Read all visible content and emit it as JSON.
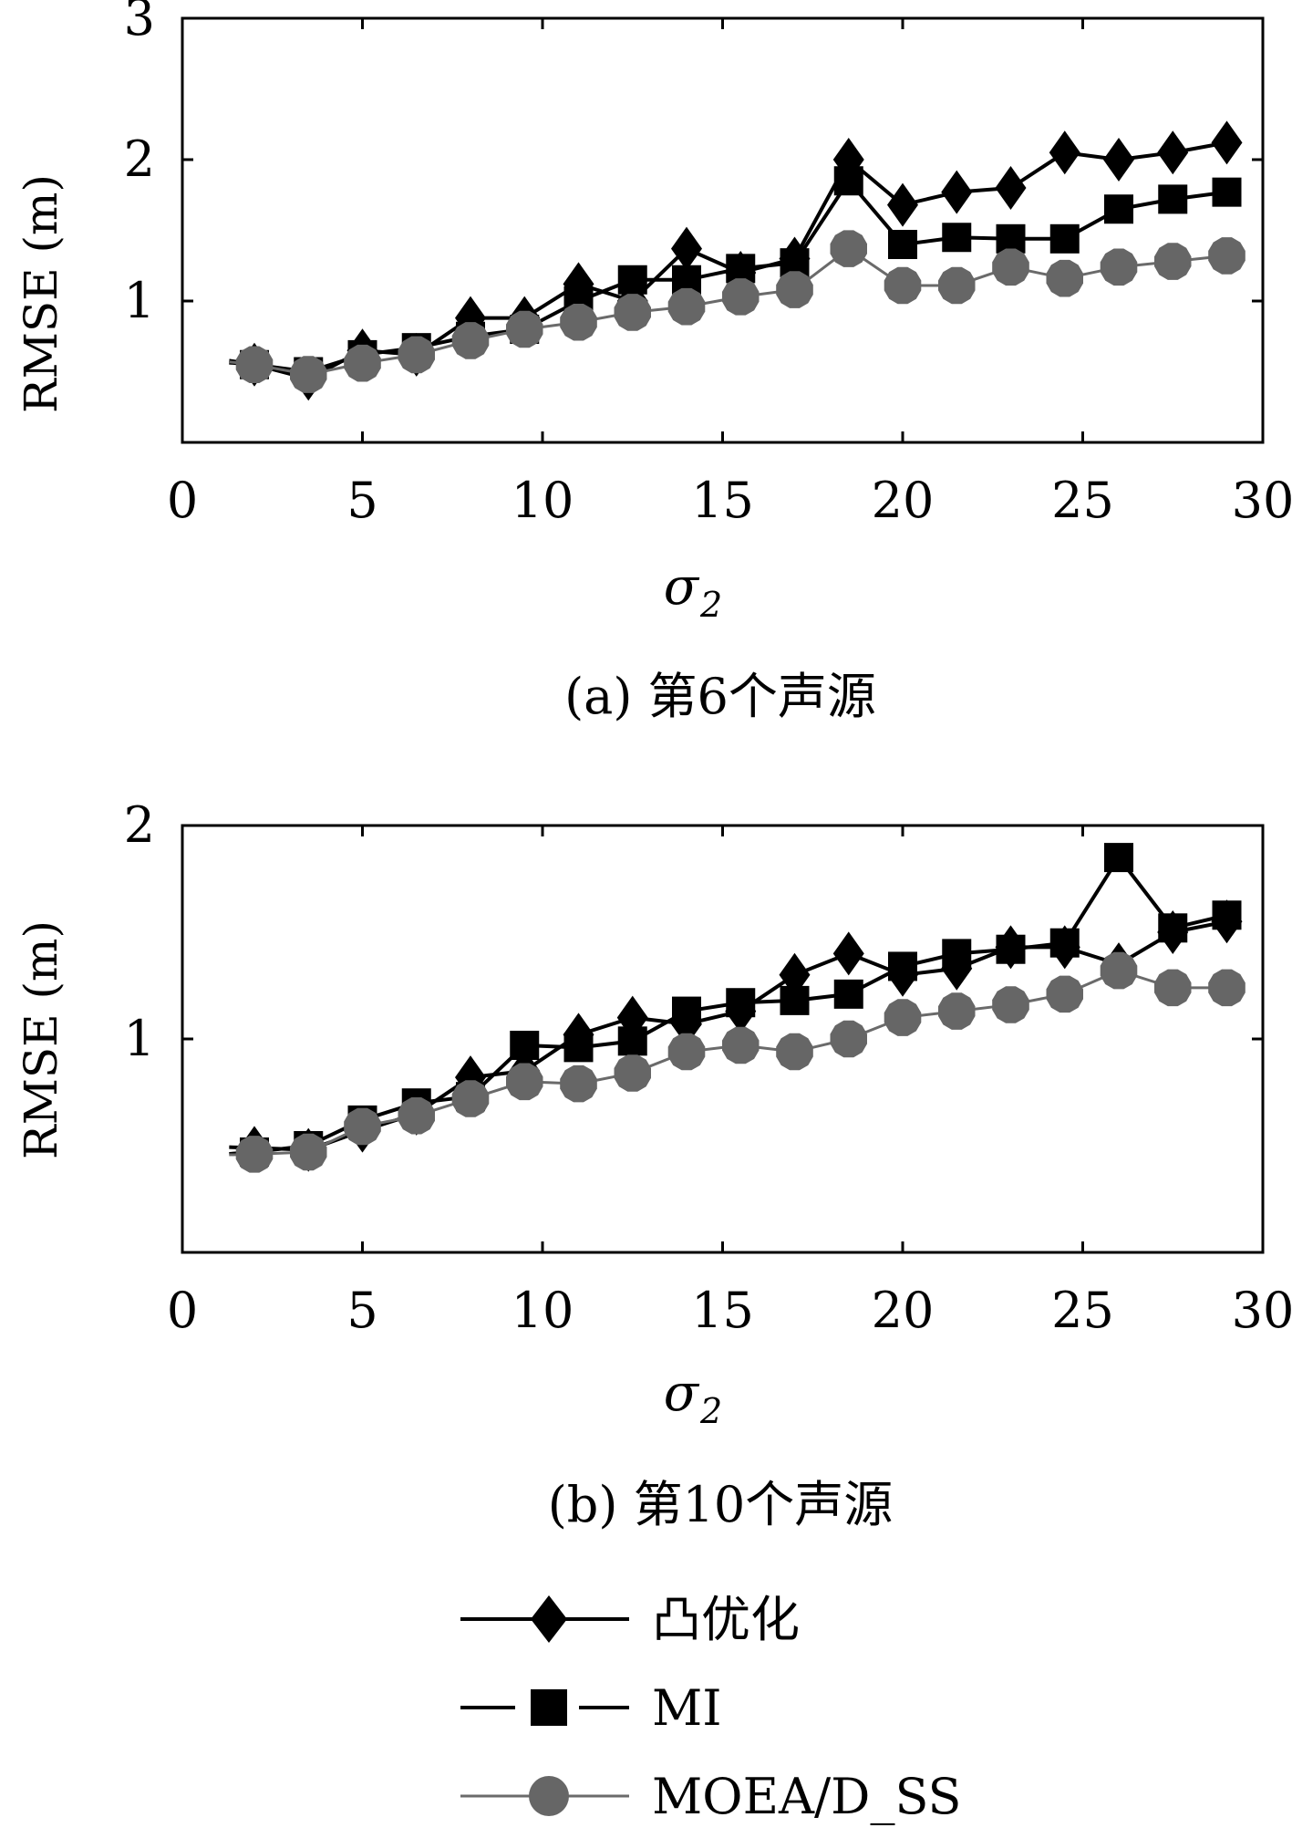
{
  "chart_data": [
    {
      "type": "line",
      "caption": "(a) 第6个声源",
      "xlabel": "σ",
      "xlabel_sub": "2",
      "ylabel": "RMSE (m)",
      "xlim": [
        0,
        30
      ],
      "ylim": [
        0,
        3
      ],
      "xticks": [
        "0",
        "5",
        "10",
        "15",
        "20",
        "25",
        "30"
      ],
      "yticks": [
        "1",
        "2",
        "3"
      ],
      "x": [
        2,
        3.5,
        5,
        6.5,
        8,
        9.5,
        11,
        12.5,
        14,
        15.5,
        17,
        18.5,
        20,
        21.5,
        23,
        24.5,
        26,
        27.5,
        29
      ],
      "series": [
        {
          "name": "凸优化",
          "values": [
            0.55,
            0.45,
            0.65,
            0.62,
            0.88,
            0.88,
            1.12,
            1.0,
            1.37,
            1.2,
            1.3,
            2.0,
            1.68,
            1.77,
            1.8,
            2.05,
            2.0,
            2.05,
            2.12
          ]
        },
        {
          "name": "MI",
          "values": [
            0.55,
            0.5,
            0.62,
            0.67,
            0.75,
            0.8,
            1.0,
            1.15,
            1.15,
            1.23,
            1.27,
            1.85,
            1.4,
            1.45,
            1.44,
            1.44,
            1.65,
            1.72,
            1.77
          ]
        },
        {
          "name": "MOEA/D_SS",
          "values": [
            0.55,
            0.48,
            0.56,
            0.62,
            0.72,
            0.8,
            0.85,
            0.92,
            0.96,
            1.03,
            1.08,
            1.37,
            1.11,
            1.11,
            1.24,
            1.16,
            1.24,
            1.28,
            1.32
          ]
        }
      ]
    },
    {
      "type": "line",
      "caption": "(b) 第10个声源",
      "xlabel": "σ",
      "xlabel_sub": "2",
      "ylabel": "RMSE (m)",
      "xlim": [
        0,
        30
      ],
      "ylim": [
        0,
        2
      ],
      "xticks": [
        "0",
        "5",
        "10",
        "15",
        "20",
        "25",
        "30"
      ],
      "yticks": [
        "1",
        "2"
      ],
      "x": [
        2,
        3.5,
        5,
        6.5,
        8,
        9.5,
        11,
        12.5,
        14,
        15.5,
        17,
        18.5,
        20,
        21.5,
        23,
        24.5,
        26,
        27.5,
        29
      ],
      "series": [
        {
          "name": "凸优化",
          "values": [
            0.49,
            0.48,
            0.57,
            0.65,
            0.82,
            0.85,
            1.02,
            1.1,
            1.07,
            1.13,
            1.3,
            1.4,
            1.3,
            1.33,
            1.43,
            1.43,
            1.35,
            1.5,
            1.55
          ]
        },
        {
          "name": "MI",
          "values": [
            0.47,
            0.5,
            0.62,
            0.7,
            0.73,
            0.97,
            0.96,
            0.99,
            1.13,
            1.17,
            1.18,
            1.21,
            1.34,
            1.4,
            1.42,
            1.45,
            1.85,
            1.52,
            1.58
          ]
        },
        {
          "name": "MOEA/D_SS",
          "values": [
            0.46,
            0.47,
            0.59,
            0.64,
            0.72,
            0.8,
            0.79,
            0.84,
            0.94,
            0.97,
            0.94,
            1.0,
            1.1,
            1.13,
            1.16,
            1.21,
            1.32,
            1.24,
            1.24
          ]
        }
      ]
    }
  ],
  "legend": {
    "position": "bottom-center",
    "items": [
      {
        "label": "凸优化",
        "marker": "diamond-icon",
        "color": "#000000"
      },
      {
        "label": "MI",
        "marker": "square-icon",
        "color": "#000000"
      },
      {
        "label": "MOEA/D_SS",
        "marker": "circle-icon",
        "color": "#6a6a6a"
      }
    ]
  },
  "colors": {
    "series_black": "#000000",
    "series_gray": "#6a6a6a",
    "marker_gray": "#666666"
  }
}
